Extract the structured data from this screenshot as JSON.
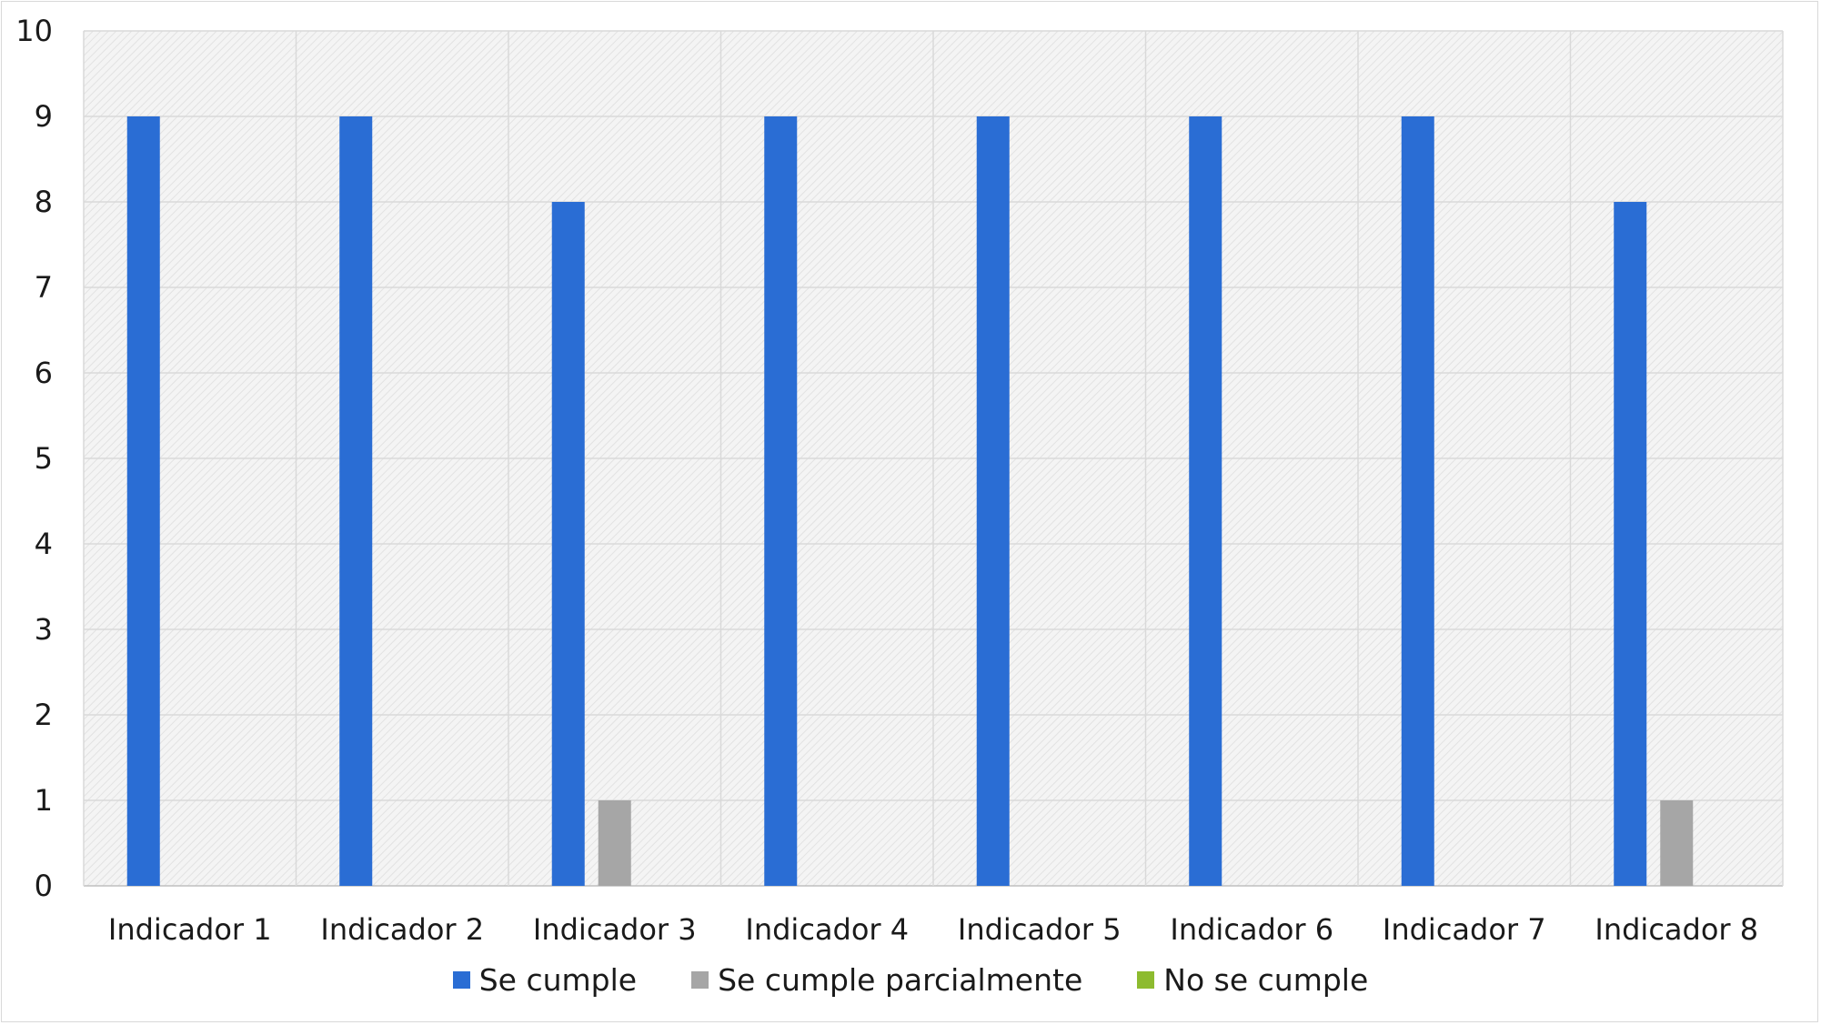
{
  "chart_data": {
    "type": "bar",
    "categories": [
      "Indicador 1",
      "Indicador 2",
      "Indicador 3",
      "Indicador 4",
      "Indicador 5",
      "Indicador 6",
      "Indicador 7",
      "Indicador 8"
    ],
    "series": [
      {
        "name": "Se cumple",
        "color": "#2a6dd4",
        "values": [
          9,
          9,
          8,
          9,
          9,
          9,
          9,
          8
        ]
      },
      {
        "name": "Se cumple parcialmente",
        "color": "#a6a6a6",
        "values": [
          0,
          0,
          1,
          0,
          0,
          0,
          0,
          1
        ]
      },
      {
        "name": "No se cumple",
        "color": "#8dbb2f",
        "values": [
          0,
          0,
          0,
          0,
          0,
          0,
          0,
          0
        ]
      }
    ],
    "yticks": [
      "0",
      "1",
      "2",
      "3",
      "4",
      "5",
      "6",
      "7",
      "8",
      "9",
      "10"
    ],
    "ylim": [
      0,
      10
    ],
    "grid": true,
    "legend_position": "bottom",
    "title": "",
    "xlabel": "",
    "ylabel": ""
  }
}
